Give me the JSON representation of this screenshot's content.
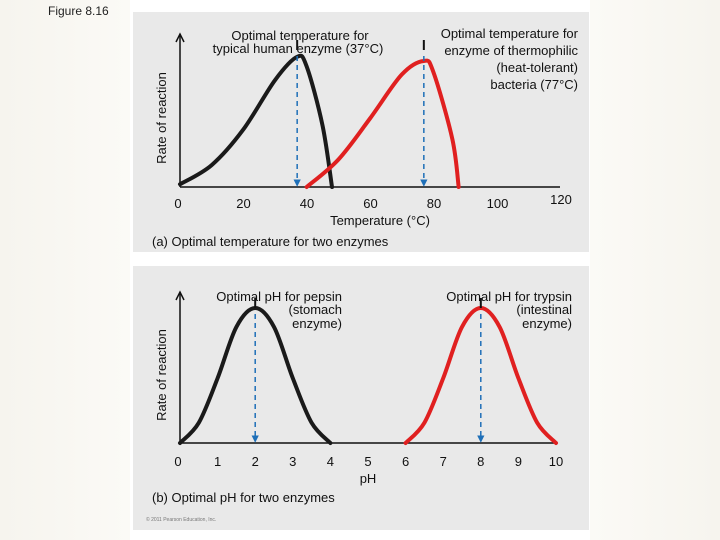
{
  "figure_label": "Figure 8.16",
  "copyright": "© 2011 Pearson Education, Inc.",
  "chart_data": [
    {
      "type": "line",
      "caption": "(a) Optimal temperature for two enzymes",
      "xlabel": "Temperature (°C)",
      "ylabel": "Rate of reaction",
      "xlim": [
        0,
        120
      ],
      "x_ticks": [
        "0",
        "20",
        "40",
        "60",
        "80",
        "100",
        "120"
      ],
      "series": [
        {
          "color": "#1a1a1a",
          "optimum": 37,
          "points": [
            [
              0,
              0.02
            ],
            [
              10,
              0.16
            ],
            [
              20,
              0.42
            ],
            [
              30,
              0.78
            ],
            [
              37,
              0.95
            ],
            [
              40,
              0.88
            ],
            [
              45,
              0.45
            ],
            [
              48,
              0.0
            ]
          ]
        },
        {
          "color": "#e02020",
          "optimum": 77,
          "points": [
            [
              40,
              0.0
            ],
            [
              50,
              0.2
            ],
            [
              60,
              0.5
            ],
            [
              70,
              0.82
            ],
            [
              77,
              0.92
            ],
            [
              80,
              0.84
            ],
            [
              86,
              0.35
            ],
            [
              88,
              0.0
            ]
          ]
        }
      ],
      "annotations": [
        {
          "lines": [
            "Optimal temperature for",
            "typical human enzyme (37°C)"
          ]
        },
        {
          "lines": [
            "Optimal temperature for",
            "enzyme of thermophilic",
            "(heat-tolerant)",
            "bacteria (77°C)"
          ]
        }
      ]
    },
    {
      "type": "line",
      "caption": "(b) Optimal pH for two enzymes",
      "xlabel": "pH",
      "ylabel": "Rate of reaction",
      "xlim": [
        0,
        10
      ],
      "x_ticks": [
        "0",
        "1",
        "2",
        "3",
        "4",
        "5",
        "6",
        "7",
        "8",
        "9",
        "10"
      ],
      "series": [
        {
          "color": "#1a1a1a",
          "optimum": 2,
          "points": [
            [
              0,
              0.0
            ],
            [
              0.5,
              0.15
            ],
            [
              1,
              0.48
            ],
            [
              1.5,
              0.86
            ],
            [
              2,
              1.0
            ],
            [
              2.5,
              0.86
            ],
            [
              3,
              0.48
            ],
            [
              3.5,
              0.15
            ],
            [
              4,
              0.0
            ]
          ]
        },
        {
          "color": "#e02020",
          "optimum": 8,
          "points": [
            [
              6,
              0.0
            ],
            [
              6.5,
              0.15
            ],
            [
              7,
              0.48
            ],
            [
              7.5,
              0.86
            ],
            [
              8,
              1.0
            ],
            [
              8.5,
              0.86
            ],
            [
              9,
              0.48
            ],
            [
              9.5,
              0.15
            ],
            [
              10,
              0.0
            ]
          ]
        }
      ],
      "annotations": [
        {
          "lines": [
            "Optimal pH for pepsin",
            "(stomach",
            "enzyme)"
          ]
        },
        {
          "lines": [
            "Optimal pH for trypsin",
            "(intestinal",
            "enzyme)"
          ]
        }
      ]
    }
  ]
}
